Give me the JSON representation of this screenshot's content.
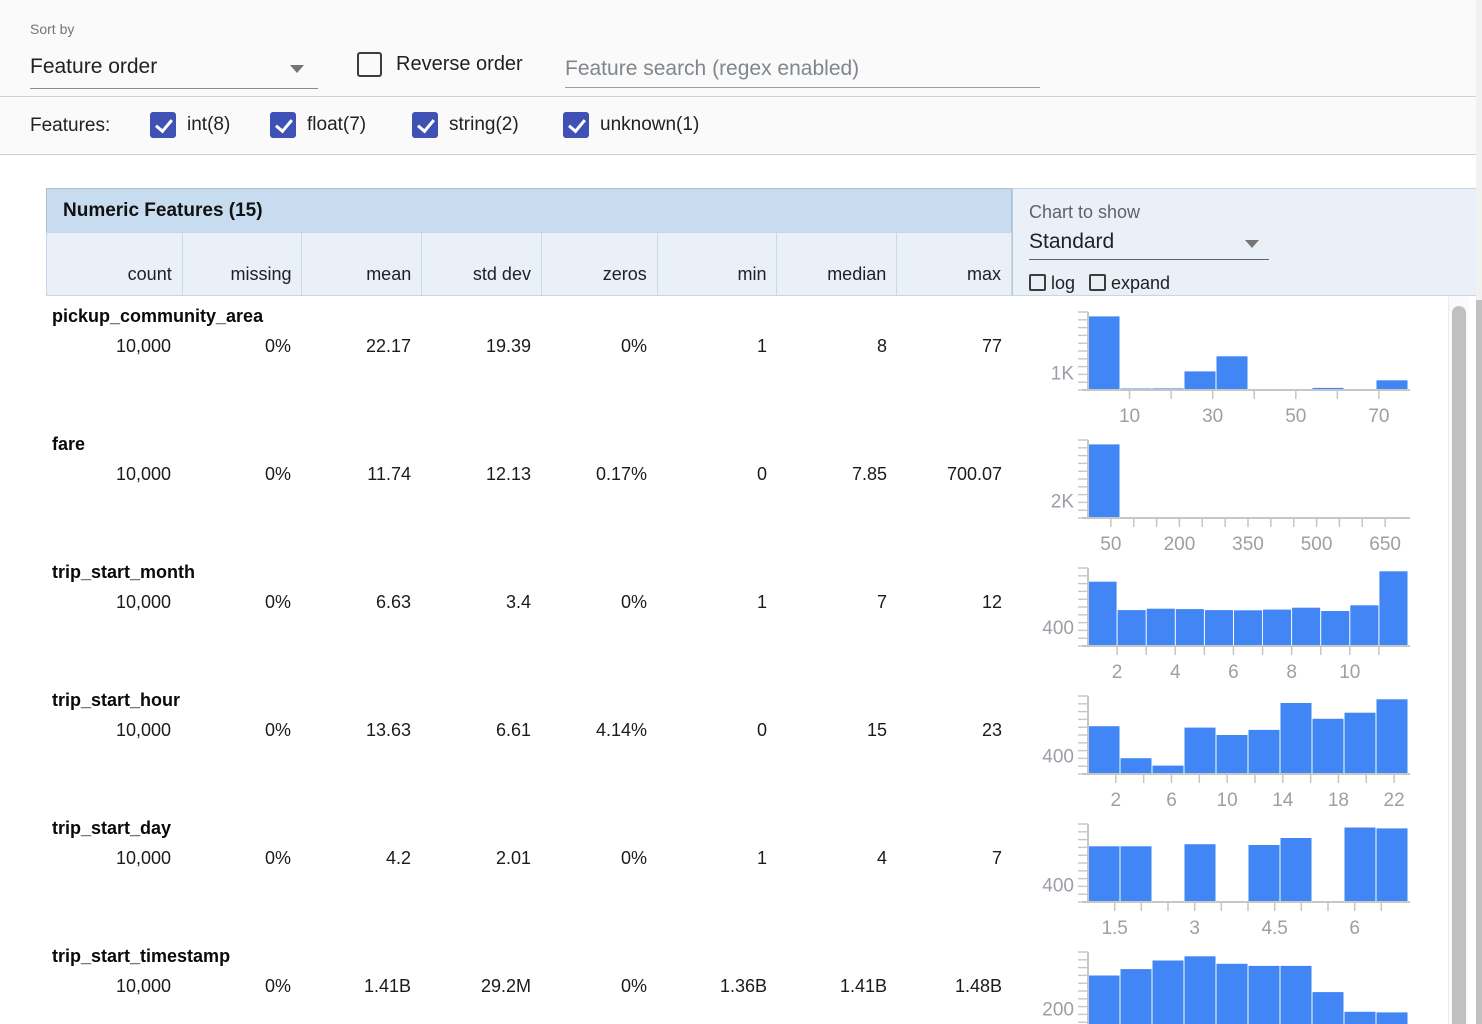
{
  "colors": {
    "accent": "#3f51b5",
    "bar": "#4285f4",
    "header_band": "#c7dcee",
    "header_bg": "#e9f0f8",
    "axis": "#c6c6c6",
    "tick_text": "#9aa0a6"
  },
  "toolbar": {
    "sort_by_label": "Sort by",
    "sort_value": "Feature order",
    "reverse_label": "Reverse order",
    "search_placeholder": "Feature search (regex enabled)"
  },
  "features_bar": {
    "label": "Features:",
    "filters": [
      {
        "label": "int(8)",
        "checked": true
      },
      {
        "label": "float(7)",
        "checked": true
      },
      {
        "label": "string(2)",
        "checked": true
      },
      {
        "label": "unknown(1)",
        "checked": true
      }
    ]
  },
  "table": {
    "title": "Numeric Features (15)",
    "columns": [
      "count",
      "missing",
      "mean",
      "std dev",
      "zeros",
      "min",
      "median",
      "max"
    ],
    "chart_controls": {
      "label": "Chart to show",
      "selected": "Standard",
      "log_label": "log",
      "expand_label": "expand"
    },
    "rows": [
      {
        "name": "pickup_community_area",
        "stats": [
          "10,000",
          "0%",
          "22.17",
          "19.39",
          "0%",
          "1",
          "8",
          "77"
        ]
      },
      {
        "name": "fare",
        "stats": [
          "10,000",
          "0%",
          "11.74",
          "12.13",
          "0.17%",
          "0",
          "7.85",
          "700.07"
        ]
      },
      {
        "name": "trip_start_month",
        "stats": [
          "10,000",
          "0%",
          "6.63",
          "3.4",
          "0%",
          "1",
          "7",
          "12"
        ]
      },
      {
        "name": "trip_start_hour",
        "stats": [
          "10,000",
          "0%",
          "13.63",
          "6.61",
          "4.14%",
          "0",
          "15",
          "23"
        ]
      },
      {
        "name": "trip_start_day",
        "stats": [
          "10,000",
          "0%",
          "4.2",
          "2.01",
          "0%",
          "1",
          "4",
          "7"
        ]
      },
      {
        "name": "trip_start_timestamp",
        "stats": [
          "10,000",
          "0%",
          "1.41B",
          "29.2M",
          "0%",
          "1.36B",
          "1.41B",
          "1.48B"
        ]
      }
    ]
  },
  "chart_data": [
    {
      "feature": "pickup_community_area",
      "type": "bar",
      "domain": [
        0,
        77
      ],
      "values": [
        4150,
        60,
        90,
        1050,
        1900,
        0,
        0,
        120,
        0,
        550
      ],
      "ymax": 4400,
      "ytick_label": "1K",
      "ytick_value": 1000,
      "xticks": [
        10,
        20,
        30,
        40,
        50,
        60,
        70
      ],
      "xlabels": [
        10,
        30,
        50,
        70
      ]
    },
    {
      "feature": "fare",
      "type": "bar",
      "domain": [
        0,
        700
      ],
      "values": [
        8300,
        30,
        8,
        4,
        2,
        1,
        1,
        1,
        1,
        2
      ],
      "ymax": 8800,
      "ytick_label": "2K",
      "ytick_value": 2000,
      "xticks": [
        50,
        100,
        150,
        200,
        250,
        300,
        350,
        400,
        450,
        500,
        550,
        600,
        650
      ],
      "xlabels": [
        50,
        200,
        350,
        500,
        650
      ]
    },
    {
      "feature": "trip_start_month",
      "type": "bar",
      "domain": [
        1,
        12
      ],
      "values": [
        1360,
        760,
        790,
        780,
        760,
        755,
        770,
        810,
        740,
        860,
        1580
      ],
      "ymax": 1650,
      "ytick_label": "400",
      "ytick_value": 400,
      "xticks": [
        2,
        3,
        4,
        5,
        6,
        7,
        8,
        9,
        10,
        11
      ],
      "xlabels": [
        2,
        4,
        6,
        8,
        10
      ]
    },
    {
      "feature": "trip_start_hour",
      "type": "bar",
      "domain": [
        0,
        23
      ],
      "values": [
        1030,
        340,
        180,
        1000,
        840,
        950,
        1530,
        1190,
        1320,
        1610
      ],
      "ymax": 1680,
      "ytick_label": "400",
      "ytick_value": 400,
      "xticks": [
        2,
        4,
        6,
        8,
        10,
        12,
        14,
        16,
        18,
        20,
        22
      ],
      "xlabels": [
        2,
        6,
        10,
        14,
        18,
        22
      ]
    },
    {
      "feature": "trip_start_day",
      "type": "bar",
      "domain": [
        1,
        7
      ],
      "values": [
        1270,
        1270,
        0,
        1320,
        0,
        1300,
        1460,
        0,
        1700,
        1680
      ],
      "ymax": 1780,
      "ytick_label": "400",
      "ytick_value": 400,
      "xticks": [
        1.5,
        2,
        2.5,
        3,
        3.5,
        4,
        4.5,
        5,
        5.5,
        6,
        6.5
      ],
      "xlabels": [
        1.5,
        3,
        4.5,
        6
      ]
    },
    {
      "feature": "trip_start_timestamp",
      "type": "bar",
      "domain": [
        1360000000,
        1480000000
      ],
      "values": [
        510,
        570,
        650,
        690,
        620,
        600,
        600,
        355,
        170,
        165
      ],
      "ymax": 730,
      "ytick_label": "200",
      "ytick_value": 200,
      "xticks": [],
      "xlabels": []
    }
  ]
}
